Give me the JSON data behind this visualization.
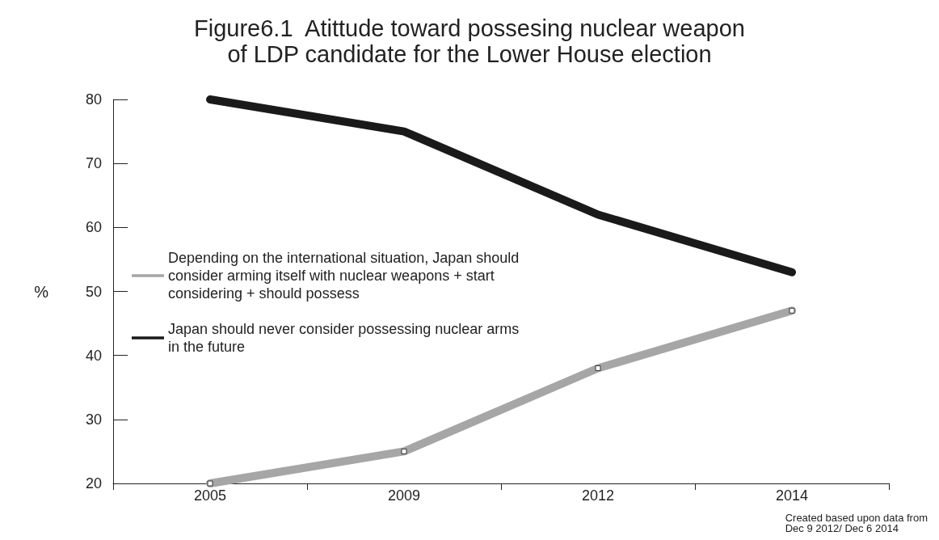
{
  "chart_data": {
    "type": "line",
    "title": "Figure6.1  Atittude toward possesing nuclear weapon\nof LDP candidate for the Lower House election",
    "ylabel": "%",
    "categories": [
      "2005",
      "2009",
      "2012",
      "2014"
    ],
    "series": [
      {
        "name": "Depending on the international situation, Japan should consider arming itself with nuclear weapons + start considering + should possess",
        "color": "#a6a6a6",
        "marker": "square",
        "values": [
          20,
          25,
          38,
          47
        ]
      },
      {
        "name": "Japan should never consider possessing nuclear arms in the future",
        "color": "#1a1a1a",
        "marker": "none",
        "values": [
          80,
          75,
          62,
          53
        ]
      }
    ],
    "ylim": [
      20,
      80
    ],
    "yticks": [
      20,
      30,
      40,
      50,
      60,
      70,
      80
    ],
    "grid": false,
    "legend": "left",
    "line_style": "solid",
    "annotations": [
      "Created based upon data from\nDec 9 2012/ Dec 6 2014"
    ]
  }
}
